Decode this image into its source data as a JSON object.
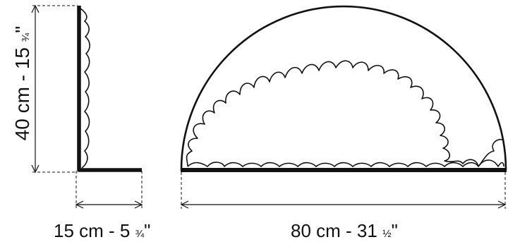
{
  "side_view": {
    "height": {
      "cm": "40 cm - 15",
      "fraction": "¾",
      "inch_mark": "\""
    },
    "depth": {
      "cm": "15 cm - 5",
      "fraction": "¾",
      "inch_mark": "\""
    }
  },
  "front_view": {
    "width": {
      "cm": "80 cm - 31",
      "fraction": "½",
      "inch_mark": "\""
    }
  },
  "colors": {
    "line": "#111111",
    "background": "#ffffff"
  }
}
